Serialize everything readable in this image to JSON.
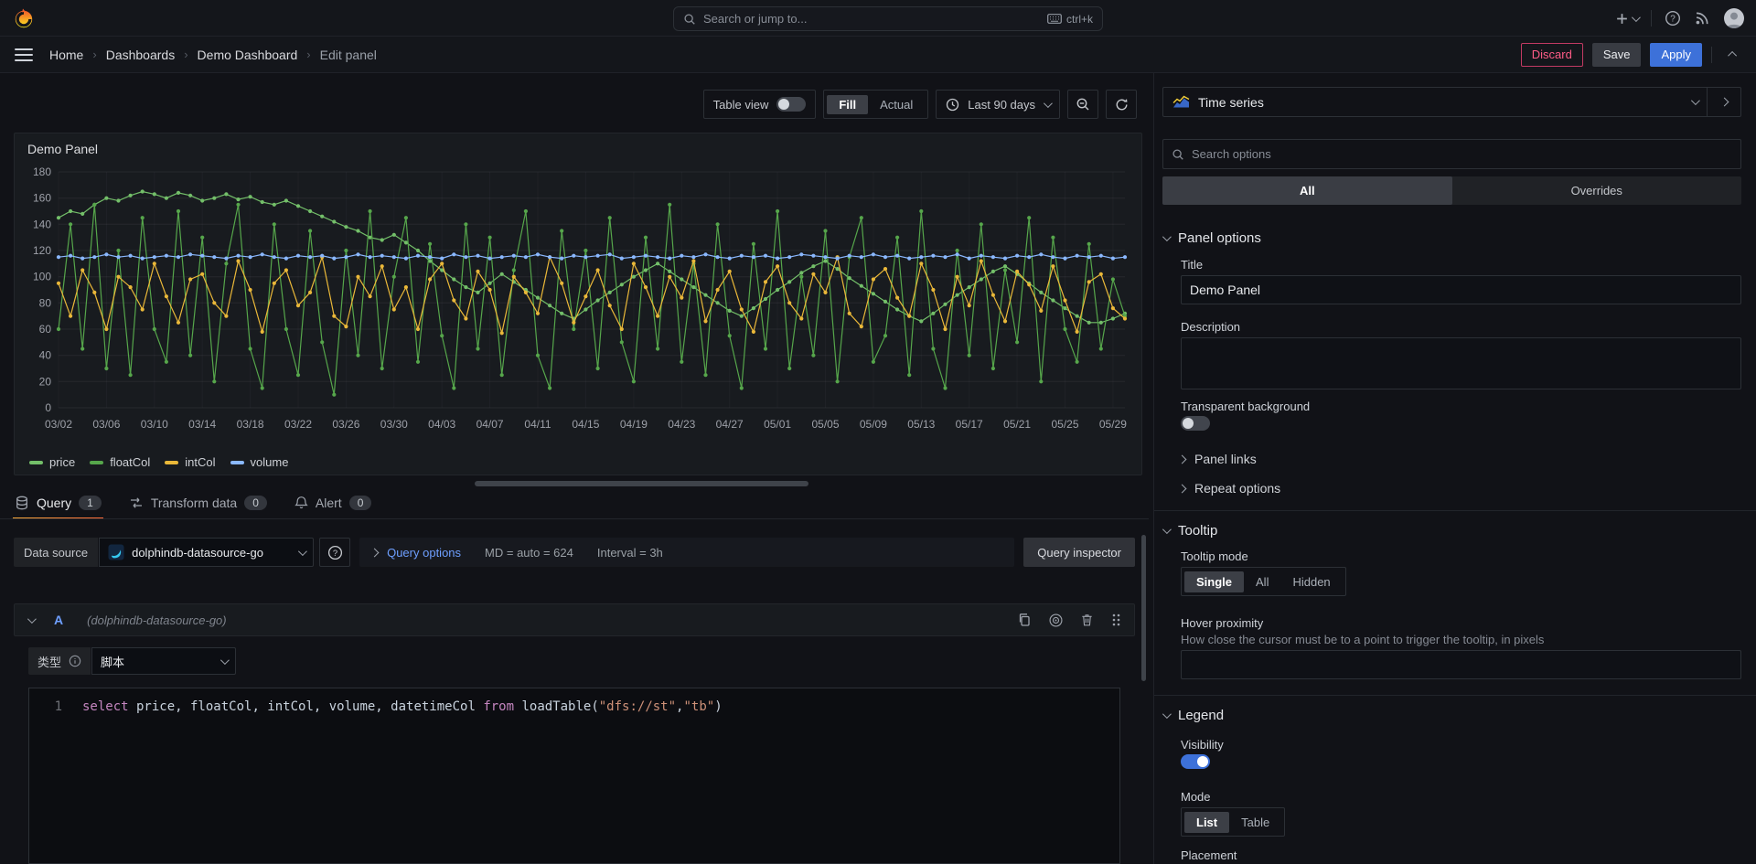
{
  "topnav": {
    "search_placeholder": "Search or jump to...",
    "shortcut": "ctrl+k"
  },
  "breadcrumb": {
    "items": [
      "Home",
      "Dashboards",
      "Demo Dashboard",
      "Edit panel"
    ]
  },
  "actions": {
    "discard": "Discard",
    "save": "Save",
    "apply": "Apply"
  },
  "toolbar": {
    "table_view": "Table view",
    "fill": "Fill",
    "actual": "Actual",
    "time_range": "Last 90 days"
  },
  "panel": {
    "title": "Demo Panel"
  },
  "chart_data": {
    "type": "line",
    "title": "Demo Panel",
    "ylim": [
      0,
      180
    ],
    "yticks": [
      0,
      20,
      40,
      60,
      80,
      100,
      120,
      140,
      160,
      180
    ],
    "xtick_every": 4,
    "xtick_labels": [
      "03/02",
      "03/06",
      "03/10",
      "03/14",
      "03/18",
      "03/22",
      "03/26",
      "03/30",
      "04/03",
      "04/07",
      "04/11",
      "04/15",
      "04/19",
      "04/23",
      "04/27",
      "05/01",
      "05/05",
      "05/09",
      "05/13",
      "05/17",
      "05/21",
      "05/25",
      "05/29"
    ],
    "n_points": 90,
    "legend_position": "bottom",
    "grid": true,
    "series": [
      {
        "name": "price",
        "color": "#73BF69",
        "values": [
          145,
          150,
          148,
          155,
          160,
          158,
          162,
          165,
          163,
          160,
          164,
          162,
          158,
          160,
          163,
          159,
          161,
          157,
          155,
          158,
          154,
          150,
          146,
          142,
          138,
          135,
          130,
          128,
          132,
          126,
          120,
          112,
          105,
          98,
          92,
          88,
          95,
          102,
          96,
          90,
          84,
          78,
          72,
          68,
          75,
          82,
          88,
          94,
          100,
          105,
          110,
          104,
          98,
          92,
          86,
          80,
          74,
          70,
          76,
          83,
          90,
          96,
          103,
          108,
          112,
          106,
          99,
          93,
          87,
          81,
          75,
          70,
          66,
          72,
          79,
          86,
          92,
          98,
          104,
          108,
          102,
          95,
          88,
          82,
          76,
          70,
          65,
          65,
          68,
          72
        ]
      },
      {
        "name": "floatCol",
        "color": "#56A64B",
        "values": [
          60,
          140,
          45,
          155,
          30,
          120,
          25,
          145,
          60,
          35,
          150,
          40,
          130,
          20,
          110,
          155,
          45,
          15,
          140,
          60,
          25,
          135,
          50,
          10,
          120,
          40,
          150,
          30,
          100,
          145,
          35,
          125,
          55,
          15,
          140,
          45,
          130,
          25,
          105,
          150,
          40,
          15,
          135,
          60,
          120,
          30,
          145,
          50,
          20,
          130,
          45,
          155,
          35,
          110,
          25,
          140,
          55,
          15,
          125,
          45,
          150,
          30,
          100,
          40,
          135,
          20,
          115,
          145,
          35,
          55,
          130,
          25,
          150,
          45,
          15,
          120,
          40,
          140,
          30,
          105,
          50,
          145,
          20,
          130,
          60,
          35,
          125,
          45,
          98,
          70
        ]
      },
      {
        "name": "intCol",
        "color": "#EAB839",
        "values": [
          95,
          70,
          105,
          88,
          60,
          100,
          92,
          75,
          110,
          85,
          65,
          98,
          102,
          80,
          70,
          112,
          90,
          58,
          95,
          105,
          78,
          88,
          115,
          70,
          62,
          100,
          85,
          108,
          75,
          92,
          60,
          98,
          110,
          82,
          68,
          104,
          90,
          57,
          100,
          88,
          72,
          115,
          95,
          65,
          85,
          105,
          78,
          60,
          110,
          92,
          70,
          100,
          84,
          112,
          66,
          90,
          104,
          75,
          58,
          96,
          108,
          80,
          68,
          102,
          88,
          115,
          72,
          62,
          98,
          106,
          84,
          70,
          110,
          90,
          60,
          100,
          78,
          112,
          86,
          66,
          104,
          94,
          74,
          108,
          82,
          58,
          96,
          102,
          76,
          68
        ]
      },
      {
        "name": "volume",
        "color": "#8AB8FF",
        "values": [
          115,
          116,
          114,
          115,
          117,
          115,
          116,
          114,
          115,
          116,
          115,
          117,
          116,
          115,
          114,
          116,
          115,
          117,
          115,
          114,
          116,
          115,
          116,
          114,
          115,
          117,
          115,
          116,
          115,
          114,
          116,
          115,
          114,
          117,
          115,
          116,
          114,
          115,
          116,
          115,
          117,
          115,
          114,
          116,
          115,
          116,
          117,
          114,
          115,
          116,
          115,
          114,
          116,
          115,
          117,
          115,
          114,
          116,
          115,
          116,
          114,
          115,
          117,
          116,
          115,
          114,
          116,
          115,
          117,
          115,
          116,
          114,
          115,
          116,
          115,
          117,
          114,
          116,
          115,
          114,
          116,
          115,
          117,
          115,
          114,
          116,
          115,
          116,
          114,
          115
        ]
      }
    ]
  },
  "query_tabs": {
    "query": "Query",
    "query_count": "1",
    "transform": "Transform data",
    "transform_count": "0",
    "alert": "Alert",
    "alert_count": "0"
  },
  "datasource": {
    "label": "Data source",
    "name": "dolphindb-datasource-go",
    "options_label": "Query options",
    "md": "MD = auto = 624",
    "interval": "Interval = 3h",
    "inspector": "Query inspector"
  },
  "query_row": {
    "ref": "A",
    "ds_hint": "(dolphindb-datasource-go)"
  },
  "editor": {
    "type_label": "类型",
    "type_value": "脚本",
    "line_number": "1",
    "tokens": [
      {
        "t": "select",
        "c": "kw"
      },
      {
        "t": " price, floatCol, intCol, volume, datetimeCol ",
        "c": "pl"
      },
      {
        "t": "from",
        "c": "kw"
      },
      {
        "t": " loadTable(",
        "c": "pl"
      },
      {
        "t": "\"dfs://st\"",
        "c": "str"
      },
      {
        "t": ",",
        "c": "pl"
      },
      {
        "t": "\"tb\"",
        "c": "str"
      },
      {
        "t": ")",
        "c": "pl"
      }
    ]
  },
  "options": {
    "viz_name": "Time series",
    "search_placeholder": "Search options",
    "tab_all": "All",
    "tab_overrides": "Overrides",
    "panel_options": {
      "header": "Panel options",
      "title_label": "Title",
      "title_value": "Demo Panel",
      "description_label": "Description",
      "transparent_label": "Transparent background",
      "panel_links": "Panel links",
      "repeat_options": "Repeat options"
    },
    "tooltip": {
      "header": "Tooltip",
      "mode_label": "Tooltip mode",
      "modes": [
        "Single",
        "All",
        "Hidden"
      ],
      "hover_label": "Hover proximity",
      "hover_desc": "How close the cursor must be to a point to trigger the tooltip, in pixels"
    },
    "legend": {
      "header": "Legend",
      "visibility_label": "Visibility",
      "mode_label": "Mode",
      "modes": [
        "List",
        "Table"
      ],
      "placement_label": "Placement"
    }
  }
}
